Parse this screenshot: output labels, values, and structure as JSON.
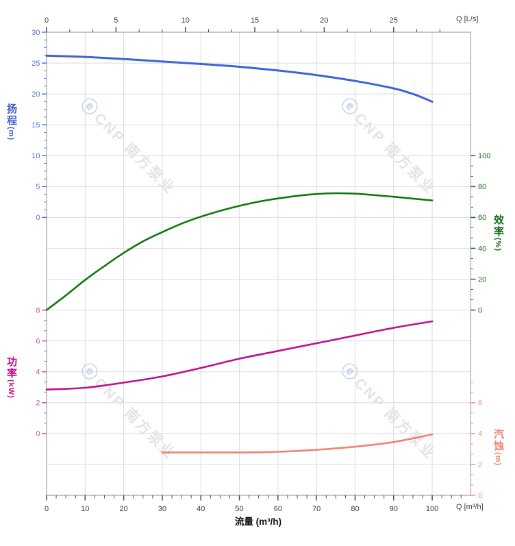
{
  "watermark": {
    "logo_glyph": "ⓔ",
    "text": "CNP 南方泵业",
    "logo_color": "#c9d6ea",
    "text_color": "#e1e4e9"
  },
  "chart_data": {
    "type": "line",
    "title": "",
    "grid": "on",
    "axes": {
      "flow_bottom": {
        "title": "流量 (m³/h)",
        "unit": "Q [m³/h]",
        "min": 0,
        "max": 110,
        "majors": [
          0,
          10,
          20,
          30,
          40,
          50,
          60,
          70,
          80,
          90,
          100
        ],
        "minor_step": 2.5,
        "label_color": "#3c3c3c",
        "tick_color": "#4a4a4a"
      },
      "flow_top": {
        "unit": "Q [L/s]",
        "min": 0,
        "max": 30.5,
        "majors": [
          0,
          5,
          10,
          15,
          20,
          25
        ],
        "minor_step": 1.6667,
        "m3h_per_unit": 3.6,
        "label_color": "#3c3c3c",
        "tick_color": "#4a4a4a"
      },
      "head_left": {
        "title": "扬程",
        "unit": "(m)",
        "min": 0,
        "max": 30,
        "majors": [
          30,
          25,
          20,
          15,
          10,
          5,
          0
        ],
        "minor_step": 1.25,
        "curve_color": "#3c63dc",
        "label_color": "#5673dc",
        "title_color": "#3d5ed2"
      },
      "power_left": {
        "title": "功率",
        "unit": "(kW)",
        "min": 0,
        "max": 8,
        "majors": [
          8,
          6,
          4,
          2,
          0
        ],
        "minor_step": 0.6667,
        "curve_color": "#c00f8b",
        "label_color": "#cd4fa6",
        "title_color": "#bc1089"
      },
      "eff_right": {
        "title": "效率",
        "unit": "(%)",
        "min": 0,
        "max": 100,
        "majors": [
          100,
          80,
          60,
          40,
          20,
          0
        ],
        "minor_step": 6.6667,
        "curve_color": "#107710",
        "label_color": "#1b6b1b",
        "title_color": "#156b15"
      },
      "npsh_right": {
        "title": "汽蚀",
        "unit": "(m)",
        "min": 0,
        "max": 7.3,
        "majors": [
          6,
          4,
          2,
          0
        ],
        "minor_step": 0.6667,
        "curve_color": "#f3826f",
        "label_color": "#f28e7e",
        "title_color": "#f2806c"
      }
    },
    "series": [
      {
        "name": "扬程",
        "axis": "head",
        "color": "#3c63dc",
        "width": 3,
        "x": [
          0,
          10,
          20,
          30,
          40,
          50,
          60,
          70,
          80,
          90,
          95,
          100
        ],
        "y": [
          26.2,
          26.0,
          25.65,
          25.25,
          24.85,
          24.4,
          23.8,
          23.05,
          22.1,
          20.9,
          20.0,
          18.75
        ]
      },
      {
        "name": "效率",
        "axis": "eff",
        "color": "#107710",
        "width": 2.6,
        "x": [
          0,
          5,
          10,
          15,
          20,
          25,
          30,
          35,
          40,
          45,
          50,
          55,
          60,
          65,
          70,
          75,
          80,
          85,
          90,
          95,
          100
        ],
        "y": [
          0,
          9.5,
          19.5,
          28.5,
          37,
          44.5,
          50.5,
          56,
          60.5,
          64.3,
          67.5,
          70.2,
          72.3,
          74,
          75.2,
          75.7,
          75.4,
          74.5,
          73.4,
          72.2,
          71
        ]
      },
      {
        "name": "功率",
        "axis": "power",
        "color": "#c00f8b",
        "width": 2.6,
        "x": [
          0,
          10,
          20,
          30,
          40,
          50,
          60,
          70,
          80,
          90,
          100
        ],
        "y": [
          2.85,
          2.97,
          3.3,
          3.7,
          4.25,
          4.85,
          5.35,
          5.85,
          6.35,
          6.85,
          7.27
        ]
      },
      {
        "name": "汽蚀",
        "axis": "npsh",
        "color": "#f3826f",
        "width": 2.6,
        "x": [
          30,
          40,
          50,
          60,
          70,
          80,
          90,
          100
        ],
        "y": [
          2.78,
          2.78,
          2.78,
          2.82,
          2.95,
          3.15,
          3.45,
          3.95
        ]
      }
    ]
  }
}
